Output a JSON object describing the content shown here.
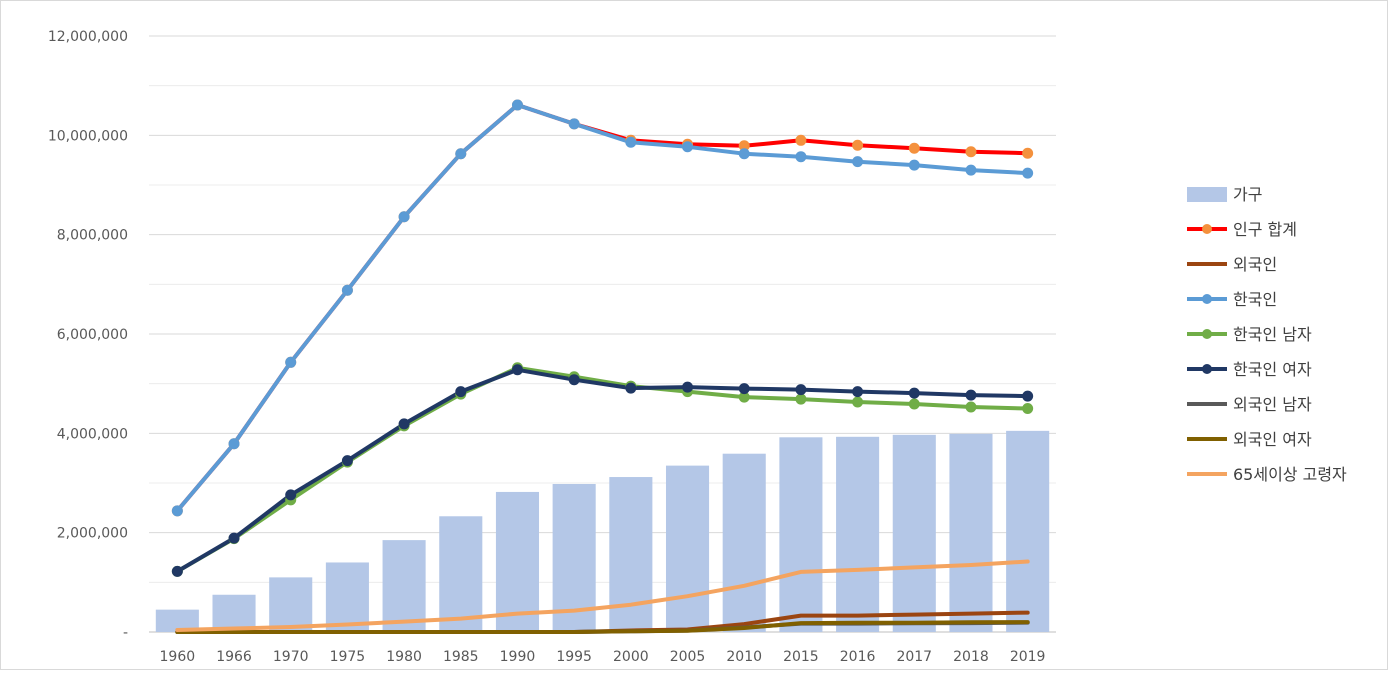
{
  "chart_data": {
    "type": "bar+line",
    "title": "",
    "xlabel": "",
    "ylabel": "",
    "ylim": [
      0,
      12000000
    ],
    "yticks": [
      0,
      2000000,
      4000000,
      6000000,
      8000000,
      10000000,
      12000000
    ],
    "ytick_labels": [
      "-",
      "2,000,000",
      "4,000,000",
      "6,000,000",
      "8,000,000",
      "10,000,000",
      "12,000,000"
    ],
    "grid": true,
    "legend_position": "right",
    "categories": [
      "1960",
      "1966",
      "1970",
      "1975",
      "1980",
      "1985",
      "1990",
      "1995",
      "2000",
      "2005",
      "2010",
      "2015",
      "2016",
      "2017",
      "2018",
      "2019"
    ],
    "bars": {
      "name": "가구",
      "color": "#b4c7e7",
      "values": [
        450000,
        750000,
        1100000,
        1400000,
        1850000,
        2330000,
        2820000,
        2980000,
        3120000,
        3350000,
        3590000,
        3920000,
        3930000,
        3970000,
        3990000,
        4050000
      ]
    },
    "series": [
      {
        "name": "인구 합계",
        "color": "#ff0000",
        "marker_color": "#f4913d",
        "marker": true,
        "values": [
          2440000,
          3790000,
          5430000,
          6880000,
          8360000,
          9630000,
          10610000,
          10230000,
          9900000,
          9820000,
          9790000,
          9900000,
          9800000,
          9740000,
          9670000,
          9640000
        ]
      },
      {
        "name": "외국인",
        "color": "#9b4511",
        "marker": false,
        "values": [
          0,
          0,
          0,
          0,
          0,
          0,
          0,
          0,
          30000,
          50000,
          160000,
          330000,
          330000,
          350000,
          370000,
          390000
        ]
      },
      {
        "name": "한국인",
        "color": "#5b9bd5",
        "marker_color": "#5b9bd5",
        "marker": true,
        "values": [
          2440000,
          3790000,
          5430000,
          6880000,
          8360000,
          9630000,
          10610000,
          10230000,
          9860000,
          9770000,
          9630000,
          9570000,
          9470000,
          9400000,
          9300000,
          9240000
        ]
      },
      {
        "name": "한국인 남자",
        "color": "#70ad47",
        "marker_color": "#70ad47",
        "marker": true,
        "values": [
          1220000,
          1880000,
          2660000,
          3420000,
          4150000,
          4790000,
          5320000,
          5140000,
          4950000,
          4840000,
          4730000,
          4690000,
          4630000,
          4590000,
          4530000,
          4500000
        ]
      },
      {
        "name": "한국인 여자",
        "color": "#203864",
        "marker_color": "#203864",
        "marker": true,
        "values": [
          1220000,
          1890000,
          2760000,
          3450000,
          4190000,
          4840000,
          5280000,
          5080000,
          4910000,
          4930000,
          4900000,
          4880000,
          4840000,
          4810000,
          4770000,
          4750000
        ]
      },
      {
        "name": "외국인 남자",
        "color": "#595959",
        "marker": false,
        "values": [
          0,
          0,
          0,
          0,
          0,
          0,
          0,
          0,
          15000,
          28000,
          90000,
          170000,
          170000,
          175000,
          180000,
          190000
        ]
      },
      {
        "name": "외국인 여자",
        "color": "#806000",
        "marker": false,
        "values": [
          0,
          0,
          0,
          0,
          0,
          0,
          0,
          0,
          15000,
          25000,
          80000,
          180000,
          185000,
          185000,
          195000,
          200000
        ]
      },
      {
        "name": "65세이상 고령자",
        "color": "#f4a460",
        "marker": false,
        "values": [
          40000,
          70000,
          100000,
          150000,
          210000,
          270000,
          370000,
          430000,
          550000,
          720000,
          930000,
          1210000,
          1250000,
          1300000,
          1350000,
          1420000
        ]
      }
    ]
  }
}
